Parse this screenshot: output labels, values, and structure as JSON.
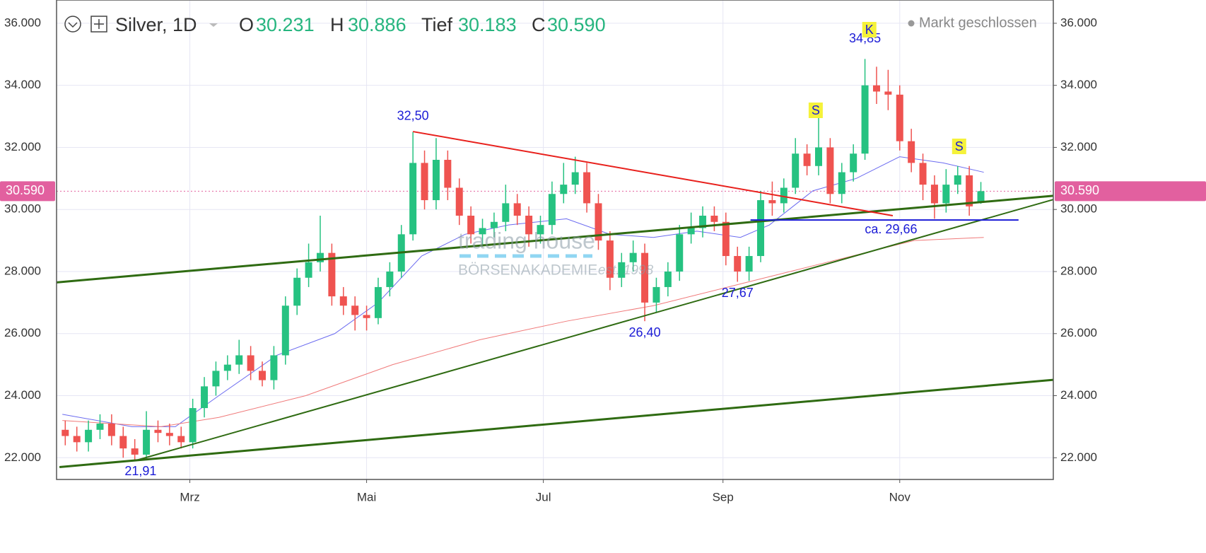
{
  "header": {
    "symbol": "Silver, 1D",
    "o_label": "O",
    "o": "30.231",
    "h_label": "H",
    "h": "30.886",
    "l_label": "Tief",
    "l": "30.183",
    "c_label": "C",
    "c": "30.590",
    "status": "Markt geschlossen"
  },
  "watermark": {
    "brand": "trading house",
    "academy": "BÖRSENAKADEMIE",
    "est": "est. 1998"
  },
  "chart_data": {
    "type": "candlestick",
    "up_color": "#26c281",
    "down_color": "#ef5350",
    "grid": true,
    "xlim": [
      14,
      358
    ],
    "ylim": [
      21.3,
      36.75
    ],
    "xticks": [
      {
        "value": 60,
        "label": "Mrz"
      },
      {
        "value": 121,
        "label": "Mai"
      },
      {
        "value": 182,
        "label": "Jul"
      },
      {
        "value": 244,
        "label": "Sep"
      },
      {
        "value": 305,
        "label": "Nov"
      }
    ],
    "yticks": [
      {
        "value": 22,
        "label": "22.000"
      },
      {
        "value": 24,
        "label": "24.000"
      },
      {
        "value": 26,
        "label": "26.000"
      },
      {
        "value": 28,
        "label": "28.000"
      },
      {
        "value": 30,
        "label": "30.000"
      },
      {
        "value": 32,
        "label": "32.000"
      },
      {
        "value": 34,
        "label": "34.000"
      },
      {
        "value": 36,
        "label": "36.000"
      }
    ],
    "last_price": {
      "value": 30.59,
      "label": "30.590",
      "color": "#e2609f"
    },
    "x": [
      17,
      21,
      25,
      29,
      33,
      37,
      41,
      45,
      49,
      53,
      57,
      61,
      65,
      69,
      73,
      77,
      81,
      85,
      89,
      93,
      97,
      101,
      105,
      109,
      113,
      117,
      121,
      125,
      129,
      133,
      137,
      141,
      145,
      149,
      153,
      157,
      161,
      165,
      169,
      173,
      177,
      181,
      185,
      189,
      193,
      197,
      201,
      205,
      209,
      213,
      217,
      221,
      225,
      229,
      233,
      237,
      241,
      245,
      249,
      253,
      257,
      261,
      265,
      269,
      273,
      277,
      281,
      285,
      289,
      293,
      297,
      301,
      305,
      309,
      313,
      317,
      321,
      325,
      329,
      333
    ],
    "open": [
      22.9,
      22.7,
      22.5,
      22.9,
      23.1,
      22.7,
      22.3,
      22.1,
      22.9,
      22.8,
      22.7,
      22.5,
      23.6,
      24.3,
      24.8,
      25.0,
      25.3,
      24.8,
      24.5,
      25.3,
      26.9,
      27.8,
      28.3,
      28.6,
      27.2,
      26.9,
      26.6,
      26.5,
      27.5,
      28.0,
      29.2,
      31.5,
      30.3,
      31.6,
      30.7,
      29.8,
      29.2,
      29.4,
      29.6,
      30.2,
      29.8,
      29.2,
      29.5,
      30.5,
      30.8,
      31.2,
      30.2,
      29.0,
      27.8,
      28.3,
      28.6,
      27.0,
      27.5,
      28.0,
      29.2,
      29.4,
      29.8,
      29.6,
      28.5,
      28.0,
      28.5,
      30.3,
      30.2,
      30.7,
      31.8,
      31.4,
      32.0,
      30.5,
      31.2,
      31.8,
      34.0,
      33.8,
      33.7,
      32.2,
      31.5,
      30.8,
      30.2,
      30.8,
      31.1,
      30.231
    ],
    "high": [
      23.2,
      23.0,
      23.2,
      23.4,
      23.4,
      23.0,
      22.6,
      23.5,
      23.2,
      23.1,
      23.0,
      23.9,
      24.6,
      25.1,
      25.3,
      25.8,
      25.6,
      25.1,
      25.6,
      27.2,
      28.1,
      28.9,
      29.8,
      28.9,
      27.5,
      27.2,
      26.9,
      27.8,
      28.3,
      29.5,
      32.5,
      31.9,
      32.3,
      31.9,
      31.0,
      30.1,
      29.7,
      29.9,
      30.8,
      30.5,
      30.1,
      29.8,
      30.9,
      31.5,
      31.7,
      31.5,
      30.5,
      29.3,
      28.6,
      29.0,
      28.9,
      27.8,
      28.3,
      29.5,
      29.9,
      30.1,
      30.1,
      29.9,
      28.8,
      28.8,
      30.6,
      30.9,
      31.0,
      32.3,
      32.1,
      33.0,
      32.3,
      31.5,
      32.1,
      34.85,
      34.6,
      34.5,
      34.0,
      32.6,
      31.8,
      31.1,
      31.3,
      31.4,
      31.4,
      30.886
    ],
    "low": [
      22.4,
      22.2,
      22.2,
      22.6,
      22.4,
      22.0,
      21.91,
      21.95,
      22.5,
      22.4,
      22.3,
      22.3,
      23.3,
      24.0,
      24.5,
      24.7,
      24.5,
      24.3,
      24.2,
      25.0,
      26.6,
      27.5,
      28.0,
      26.9,
      26.6,
      26.1,
      26.1,
      26.3,
      27.2,
      27.8,
      29.0,
      30.0,
      30.0,
      30.3,
      29.5,
      28.9,
      28.8,
      29.1,
      29.3,
      29.5,
      28.8,
      28.9,
      29.2,
      30.2,
      30.5,
      29.9,
      28.7,
      27.4,
      27.5,
      28.0,
      26.4,
      26.7,
      27.2,
      27.7,
      28.9,
      29.1,
      29.3,
      28.2,
      27.67,
      27.7,
      28.3,
      29.8,
      29.9,
      30.5,
      31.1,
      31.1,
      30.2,
      30.2,
      30.9,
      31.6,
      33.4,
      33.2,
      31.9,
      31.2,
      30.3,
      29.7,
      29.9,
      30.5,
      29.8,
      30.183
    ],
    "close": [
      22.7,
      22.5,
      22.9,
      23.1,
      22.7,
      22.3,
      22.1,
      22.9,
      22.8,
      22.7,
      22.5,
      23.6,
      24.3,
      24.8,
      25.0,
      25.3,
      24.8,
      24.5,
      25.3,
      26.9,
      27.8,
      28.3,
      28.6,
      27.2,
      26.9,
      26.6,
      26.5,
      27.5,
      28.0,
      29.2,
      31.5,
      30.3,
      31.6,
      30.7,
      29.8,
      29.2,
      29.4,
      29.6,
      30.2,
      29.8,
      29.2,
      29.5,
      30.5,
      30.8,
      31.2,
      30.2,
      29.0,
      27.8,
      28.3,
      28.6,
      27.0,
      27.5,
      28.0,
      29.2,
      29.4,
      29.8,
      29.6,
      28.5,
      28.0,
      28.5,
      30.3,
      30.2,
      30.7,
      31.8,
      31.4,
      32.0,
      30.5,
      31.2,
      31.8,
      34.0,
      33.8,
      33.7,
      32.2,
      31.5,
      30.8,
      30.2,
      30.8,
      31.1,
      30.1,
      30.59
    ],
    "lines": [
      {
        "color": "#6b6bf0",
        "x": [
          16,
          40,
          55,
          70,
          90,
          110,
          125,
          140,
          155,
          170,
          190,
          205,
          220,
          235,
          250,
          260,
          275,
          290,
          305,
          320,
          334
        ],
        "values": [
          23.4,
          23.0,
          23.0,
          24.0,
          25.3,
          26.0,
          27.0,
          28.5,
          29.2,
          29.5,
          29.7,
          29.2,
          29.1,
          29.3,
          29.1,
          29.5,
          30.6,
          31.0,
          31.7,
          31.5,
          31.2
        ]
      },
      {
        "color": "#f07a7a",
        "x": [
          16,
          50,
          70,
          100,
          130,
          160,
          190,
          220,
          250,
          280,
          310,
          334
        ],
        "values": [
          23.2,
          23.0,
          23.3,
          24.0,
          25.0,
          25.8,
          26.4,
          26.9,
          27.6,
          28.3,
          29.0,
          29.1
        ]
      }
    ],
    "trendlines": [
      {
        "color": "#2f6b12",
        "x": [
          14,
          358
        ],
        "values": [
          27.65,
          30.44
        ]
      },
      {
        "color": "#2f6b12",
        "x": [
          15,
          358
        ],
        "values": [
          21.7,
          24.51
        ]
      },
      {
        "color": "#2f6b12",
        "x": [
          42,
          358
        ],
        "values": [
          21.93,
          30.32
        ]
      },
      {
        "color": "#e8201c",
        "x": [
          137,
          302.6
        ],
        "values": [
          32.51,
          29.8
        ]
      },
      {
        "color": "#1b1bd6",
        "x": [
          253.5,
          346
        ],
        "values": [
          29.66,
          29.66
        ]
      }
    ],
    "annotations": [
      {
        "label": "32,50",
        "value": 32.5,
        "x": 137
      },
      {
        "label": "21,91",
        "value": 21.91,
        "x": 43
      },
      {
        "label": "26,40",
        "value": 26.4,
        "x": 217
      },
      {
        "label": "27,67",
        "value": 27.67,
        "x": 249
      },
      {
        "label": "34,85",
        "value": 34.85,
        "x": 293
      },
      {
        "label": "ca. 29,66",
        "value": 29.66,
        "x": 302
      }
    ],
    "pattern_labels": [
      {
        "label": "K",
        "x": 294.5
      },
      {
        "label": "S",
        "x": 276
      },
      {
        "label": "S",
        "x": 325.5
      }
    ]
  }
}
